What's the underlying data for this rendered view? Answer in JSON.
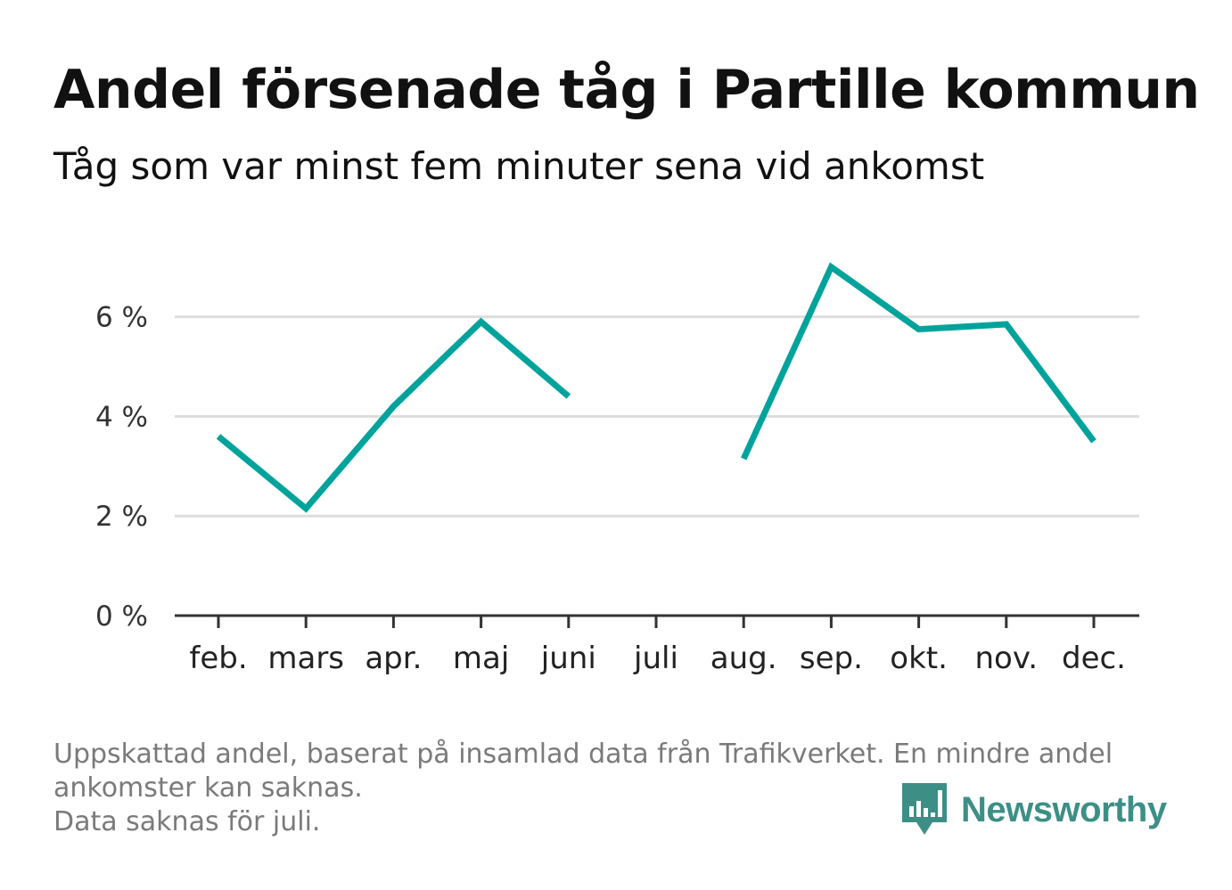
{
  "title": "Andel försenade tåg i Partille kommun",
  "subtitle": "Tåg som var minst fem minuter sena vid ankomst",
  "footnote": {
    "line1": "Uppskattad andel, baserat på insamlad data från Trafikverket. En mindre andel",
    "line2": "ankomster kan saknas.",
    "line3": "Data saknas för juli."
  },
  "brand": {
    "name": "Newsworthy",
    "icon": "bar-chart-speech-bubble-icon",
    "color": "#3d8f86"
  },
  "chart_data": {
    "type": "line",
    "title": "Andel försenade tåg i Partille kommun",
    "subtitle": "Tåg som var minst fem minuter sena vid ankomst",
    "xlabel": "",
    "ylabel": "",
    "categories": [
      "feb.",
      "mars",
      "apr.",
      "maj",
      "juni",
      "juli",
      "aug.",
      "sep.",
      "okt.",
      "nov.",
      "dec."
    ],
    "series": [
      {
        "values": [
          3.6,
          2.15,
          4.2,
          5.9,
          4.4,
          null,
          3.15,
          7.0,
          5.75,
          5.85,
          3.5
        ],
        "color": "#00a39b"
      }
    ],
    "y_ticks": [
      0,
      2,
      4,
      6
    ],
    "y_tick_labels": [
      "0 %",
      "2 %",
      "4 %",
      "6 %"
    ],
    "ylim": [
      0,
      8
    ],
    "grid": true,
    "legend": "none"
  }
}
